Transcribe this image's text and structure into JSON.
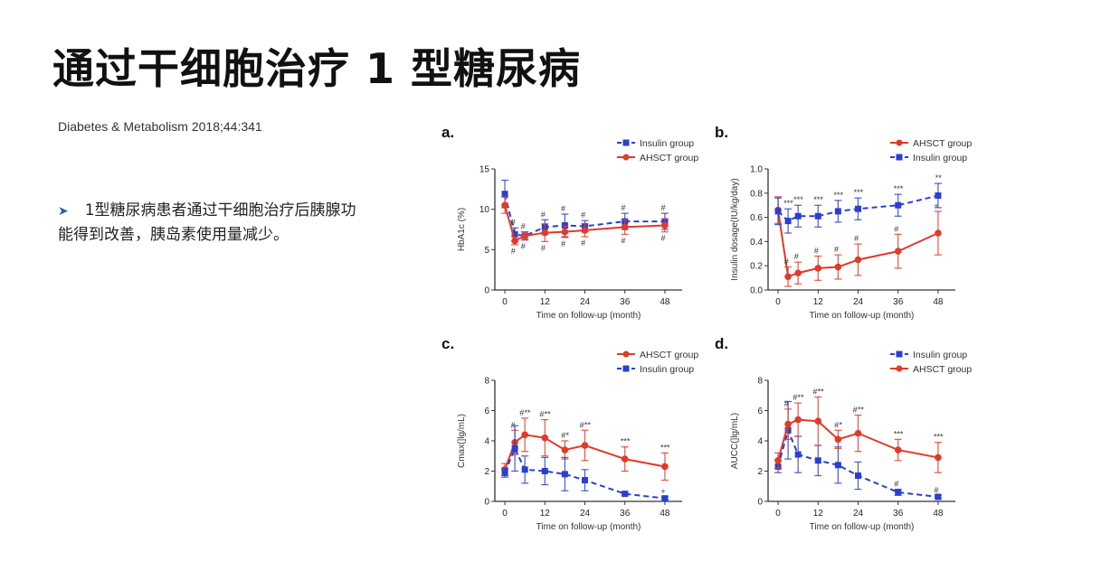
{
  "slide": {
    "title": "通过干细胞治疗 1 型糖尿病",
    "citation": "Diabetes & Metabolism  2018;44:341",
    "bullet_icon": "arrow-bullet-icon",
    "bullet_text": "1型糖尿病患者通过干细胞治疗后胰腺功能得到改善，胰岛素使用量减少。"
  },
  "colors": {
    "insulin": "#2a3fd1",
    "ahsct": "#e03a2a"
  },
  "chart_data": [
    {
      "panel": "a.",
      "type": "line",
      "title": "",
      "xlabel": "Time on follow-up (month)",
      "ylabel": "HbA1c (%)",
      "xlim": [
        -3,
        51
      ],
      "ylim": [
        0,
        15
      ],
      "xticks": [
        0,
        12,
        24,
        36,
        48
      ],
      "yticks": [
        0,
        5,
        10,
        15
      ],
      "legend_position": "top-right",
      "legend_order": [
        "Insulin group",
        "AHSCT group"
      ],
      "x": [
        0,
        3,
        6,
        12,
        18,
        24,
        36,
        48
      ],
      "series": [
        {
          "name": "Insulin group",
          "color_key": "insulin",
          "dashed": true,
          "marker": "square",
          "values": [
            11.9,
            6.9,
            6.7,
            7.8,
            8.0,
            7.9,
            8.5,
            8.5
          ],
          "errors": [
            1.7,
            0.8,
            0.5,
            0.9,
            1.4,
            0.7,
            1.0,
            1.0
          ],
          "annotations": [
            "",
            "#",
            "#",
            "#",
            "#",
            "#",
            "#",
            "#"
          ]
        },
        {
          "name": "AHSCT group",
          "color_key": "ahsct",
          "dashed": false,
          "marker": "circle",
          "values": [
            10.5,
            6.1,
            6.7,
            7.1,
            7.2,
            7.4,
            7.8,
            8.0
          ],
          "errors": [
            1.0,
            0.5,
            0.5,
            1.1,
            0.7,
            0.8,
            0.9,
            0.8
          ],
          "annotations": [
            "",
            "#",
            "#",
            "#",
            "#",
            "#",
            "#",
            "#"
          ]
        }
      ]
    },
    {
      "panel": "b.",
      "type": "line",
      "title": "",
      "xlabel": "Time on follow-up (month)",
      "ylabel": "Insulin dosage(IU/kg/day)",
      "xlim": [
        -3,
        51
      ],
      "ylim": [
        0,
        1.0
      ],
      "xticks": [
        0,
        12,
        24,
        36,
        48
      ],
      "yticks": [
        0.0,
        0.2,
        0.4,
        0.6,
        0.8,
        1.0
      ],
      "ytick_labels": [
        "0.0",
        "0.2",
        "0.4",
        "0.6",
        "0.8",
        "1.0"
      ],
      "legend_position": "top-right",
      "legend_order": [
        "AHSCT group",
        "Insulin group"
      ],
      "x": [
        0,
        3,
        6,
        12,
        18,
        24,
        36,
        48
      ],
      "series": [
        {
          "name": "AHSCT group",
          "color_key": "ahsct",
          "dashed": false,
          "marker": "circle",
          "values": [
            0.66,
            0.11,
            0.14,
            0.18,
            0.19,
            0.25,
            0.32,
            0.47
          ],
          "errors": [
            0.11,
            0.08,
            0.09,
            0.1,
            0.1,
            0.13,
            0.14,
            0.18
          ],
          "annotations": [
            "",
            "#",
            "#",
            "#",
            "#",
            "#",
            "#",
            "+"
          ]
        },
        {
          "name": "Insulin group",
          "color_key": "insulin",
          "dashed": true,
          "marker": "square",
          "values": [
            0.65,
            0.57,
            0.61,
            0.61,
            0.65,
            0.67,
            0.7,
            0.78
          ],
          "errors": [
            0.11,
            0.1,
            0.09,
            0.09,
            0.09,
            0.09,
            0.09,
            0.1
          ],
          "annotations": [
            "",
            "***",
            "***",
            "***",
            "***",
            "***",
            "***",
            "**"
          ]
        }
      ]
    },
    {
      "panel": "c.",
      "type": "line",
      "title": "",
      "xlabel": "Time on follow-up (month)",
      "ylabel": "Cmax(]lg/mL)",
      "xlim": [
        -3,
        51
      ],
      "ylim": [
        0,
        8
      ],
      "xticks": [
        0,
        12,
        24,
        36,
        48
      ],
      "yticks": [
        0,
        2,
        4,
        6,
        8
      ],
      "legend_position": "top-right",
      "legend_order": [
        "AHSCT group",
        "Insulin group"
      ],
      "x": [
        0,
        3,
        6,
        12,
        18,
        24,
        36,
        48
      ],
      "series": [
        {
          "name": "AHSCT group",
          "color_key": "ahsct",
          "dashed": false,
          "marker": "circle",
          "values": [
            2.1,
            3.9,
            4.4,
            4.2,
            3.4,
            3.7,
            2.8,
            2.3
          ],
          "errors": [
            0.4,
            0.8,
            1.1,
            1.2,
            0.6,
            1.0,
            0.8,
            0.9
          ],
          "annotations": [
            "",
            "#",
            "#**",
            "#**",
            "#*",
            "#**",
            "***",
            "***"
          ]
        },
        {
          "name": "Insulin group",
          "color_key": "insulin",
          "dashed": true,
          "marker": "square",
          "values": [
            1.9,
            3.5,
            2.1,
            2.0,
            1.8,
            1.4,
            0.5,
            0.2
          ],
          "errors": [
            0.3,
            1.5,
            0.9,
            0.9,
            1.1,
            0.7,
            0.1,
            0.1
          ],
          "annotations": [
            "",
            "",
            "",
            "",
            "",
            "",
            "",
            "+"
          ]
        }
      ]
    },
    {
      "panel": "d.",
      "type": "line",
      "title": "",
      "xlabel": "Time on follow-up (month)",
      "ylabel": "AUCC(]lg/mL)",
      "xlim": [
        -3,
        51
      ],
      "ylim": [
        0,
        8
      ],
      "xticks": [
        0,
        12,
        24,
        36,
        48
      ],
      "yticks": [
        0,
        2,
        4,
        6,
        8
      ],
      "legend_position": "top-right",
      "legend_order": [
        "Insulin group",
        "AHSCT group"
      ],
      "x": [
        0,
        3,
        6,
        12,
        18,
        24,
        36,
        48
      ],
      "series": [
        {
          "name": "Insulin group",
          "color_key": "insulin",
          "dashed": true,
          "marker": "square",
          "values": [
            2.3,
            4.7,
            3.1,
            2.7,
            2.4,
            1.7,
            0.6,
            0.3
          ],
          "errors": [
            0.4,
            1.9,
            1.2,
            1.0,
            1.2,
            0.9,
            0.2,
            0.1
          ],
          "annotations": [
            "",
            "",
            "",
            "",
            "",
            "",
            "#",
            "#"
          ]
        },
        {
          "name": "AHSCT group",
          "color_key": "ahsct",
          "dashed": false,
          "marker": "circle",
          "values": [
            2.7,
            5.1,
            5.4,
            5.3,
            4.1,
            4.5,
            3.4,
            2.9
          ],
          "errors": [
            0.5,
            1.0,
            1.1,
            1.6,
            0.6,
            1.2,
            0.7,
            1.0
          ],
          "annotations": [
            "",
            "#",
            "#**",
            "#**",
            "#*",
            "#**",
            "***",
            "***"
          ]
        }
      ]
    }
  ]
}
